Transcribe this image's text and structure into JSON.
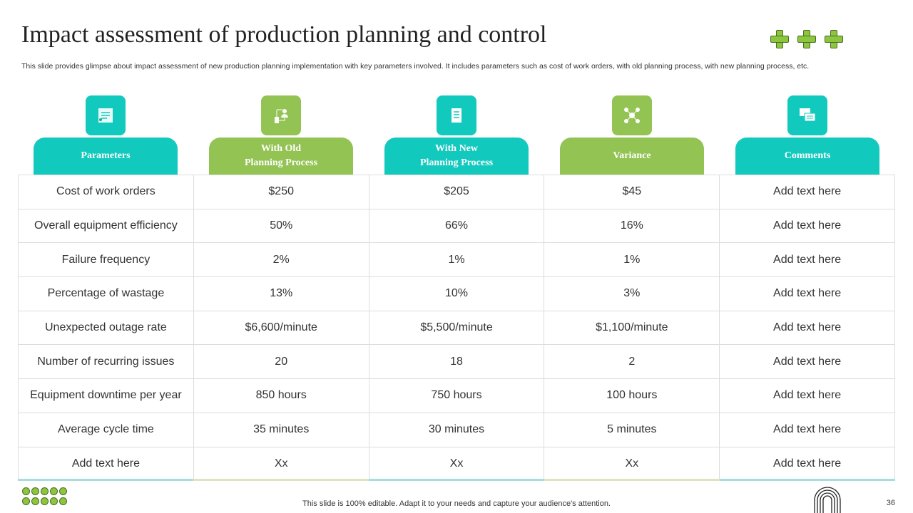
{
  "title": "Impact assessment of production planning and control",
  "description": "This slide provides glimpse about impact assessment of new production planning implementation with key parameters involved. It includes parameters such as cost of work orders, with old planning process, with new planning process, etc.",
  "colors": {
    "teal": "#12c9be",
    "green": "#92c353"
  },
  "columns": [
    {
      "label": "Parameters",
      "icon": "checklist-icon",
      "color": "teal"
    },
    {
      "label": "With Old\nPlanning Process",
      "icon": "flowchart-person-icon",
      "color": "green"
    },
    {
      "label": "With New\nPlanning Process",
      "icon": "document-list-icon",
      "color": "teal"
    },
    {
      "label": "Variance",
      "icon": "network-nodes-icon",
      "color": "green"
    },
    {
      "label": "Comments",
      "icon": "chat-bubbles-icon",
      "color": "teal"
    }
  ],
  "rows": [
    [
      "Cost of work orders",
      "$250",
      "$205",
      "$45",
      "Add text here"
    ],
    [
      "Overall equipment efficiency",
      "50%",
      "66%",
      "16%",
      "Add text here"
    ],
    [
      "Failure frequency",
      "2%",
      "1%",
      "1%",
      "Add text here"
    ],
    [
      "Percentage of wastage",
      "13%",
      "10%",
      "3%",
      "Add text here"
    ],
    [
      "Unexpected outage rate",
      "$6,600/minute",
      "$5,500/minute",
      "$1,100/minute",
      "Add text here"
    ],
    [
      "Number of recurring issues",
      "20",
      "18",
      "2",
      "Add text here"
    ],
    [
      "Equipment downtime per year",
      "850 hours",
      "750 hours",
      "100 hours",
      "Add text here"
    ],
    [
      "Average cycle time",
      "35 minutes",
      "30 minutes",
      "5 minutes",
      "Add text here"
    ],
    [
      "Add text here",
      "Xx",
      "Xx",
      "Xx",
      "Add text here"
    ]
  ],
  "footer": "This slide is 100% editable. Adapt it to your needs and capture your audience's attention.",
  "page_number": "36"
}
